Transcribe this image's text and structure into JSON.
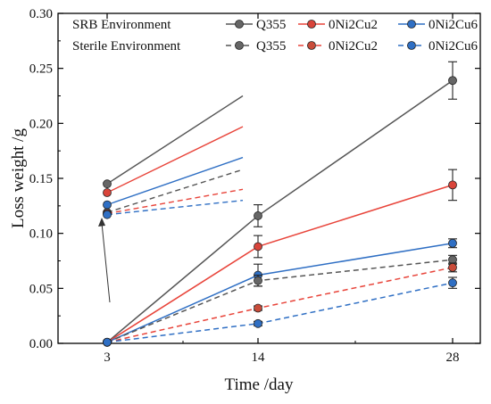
{
  "chart_data": {
    "type": "line",
    "xlabel": "Time /day",
    "ylabel": "Loss weight /g",
    "x_categories": [
      3,
      14,
      28
    ],
    "x_ticks": [
      "3",
      "14",
      "28"
    ],
    "ylim": [
      0,
      0.3
    ],
    "y_ticks": [
      "0.00",
      "0.05",
      "0.10",
      "0.15",
      "0.20",
      "0.25",
      "0.30"
    ],
    "grid": false,
    "legend_position": "top",
    "legend_groups": [
      {
        "label": "SRB Environment",
        "line_style": "solid",
        "materials": [
          "Q355",
          "0Ni2Cu2",
          "0Ni2Cu6"
        ]
      },
      {
        "label": "Sterile Environment",
        "line_style": "dashed",
        "materials": [
          "Q355",
          "0Ni2Cu2",
          "0Ni2Cu6"
        ]
      }
    ],
    "series": [
      {
        "name": "Q355",
        "group": "SRB Environment",
        "style": "solid",
        "color": "#555555",
        "marker": "#666666",
        "values": [
          0.001,
          0.116,
          0.239
        ],
        "errors": [
          0.001,
          0.01,
          0.017
        ]
      },
      {
        "name": "0Ni2Cu2",
        "group": "SRB Environment",
        "style": "solid",
        "color": "#e8443a",
        "marker": "#d9443a",
        "values": [
          0.001,
          0.088,
          0.144
        ],
        "errors": [
          0.001,
          0.01,
          0.014
        ]
      },
      {
        "name": "0Ni2Cu6",
        "group": "SRB Environment",
        "style": "solid",
        "color": "#2f6fc4",
        "marker": "#2f6fc4",
        "values": [
          0.001,
          0.062,
          0.091
        ],
        "errors": [
          0.001,
          0.01,
          0.004
        ]
      },
      {
        "name": "Q355",
        "group": "Sterile Environment",
        "style": "dashed",
        "color": "#555555",
        "marker": "#666666",
        "values": [
          0.001,
          0.057,
          0.076
        ],
        "errors": [
          0.001,
          0.005,
          0.004
        ]
      },
      {
        "name": "0Ni2Cu2",
        "group": "Sterile Environment",
        "style": "dashed",
        "color": "#e8443a",
        "marker": "#c94c3a",
        "values": [
          0.001,
          0.032,
          0.069
        ],
        "errors": [
          0.001,
          0.002,
          0.004
        ]
      },
      {
        "name": "0Ni2Cu6",
        "group": "Sterile Environment",
        "style": "dashed",
        "color": "#2f6fc4",
        "marker": "#2f6fc4",
        "values": [
          0.001,
          0.018,
          0.055
        ],
        "errors": [
          0.001,
          0.002,
          0.005
        ]
      }
    ],
    "inset": {
      "description": "magnified view of day-3 points",
      "values": [
        0.145,
        0.137,
        0.126,
        0.119,
        0.118,
        0.117
      ]
    },
    "colors": {
      "q355": "#555555",
      "cu2": "#e8443a",
      "cu6": "#2f6fc4"
    }
  }
}
